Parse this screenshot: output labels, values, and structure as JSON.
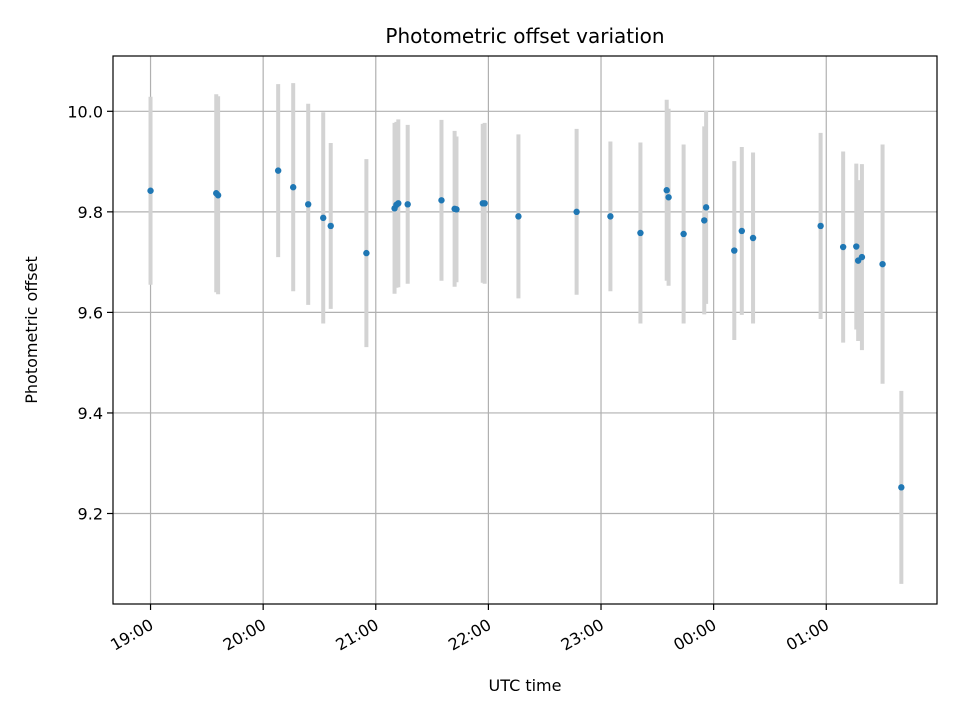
{
  "chart_data": {
    "type": "scatter",
    "title": "Photometric offset variation",
    "xlabel": "UTC time",
    "ylabel": "Photometric offset",
    "grid": true,
    "xlim": [
      "18:40",
      "01:59"
    ],
    "ylim": [
      9.02,
      10.11
    ],
    "xticks": [
      "19:00",
      "20:00",
      "21:00",
      "22:00",
      "23:00",
      "00:00",
      "01:00"
    ],
    "yticks": [
      9.2,
      9.4,
      9.6,
      9.8,
      10.0
    ],
    "colors": {
      "marker": "#1f77b4",
      "errorbar": "#d3d3d3",
      "grid": "#b0b0b0"
    },
    "points": [
      {
        "x": "19:00",
        "y": 9.842,
        "err": 0.187
      },
      {
        "x": "19:35",
        "y": 9.837,
        "err": 0.197
      },
      {
        "x": "19:36",
        "y": 9.833,
        "err": 0.197
      },
      {
        "x": "20:08",
        "y": 9.882,
        "err": 0.172
      },
      {
        "x": "20:16",
        "y": 9.849,
        "err": 0.207
      },
      {
        "x": "20:24",
        "y": 9.815,
        "err": 0.2
      },
      {
        "x": "20:32",
        "y": 9.788,
        "err": 0.21
      },
      {
        "x": "20:36",
        "y": 9.772,
        "err": 0.165
      },
      {
        "x": "20:55",
        "y": 9.718,
        "err": 0.187
      },
      {
        "x": "21:10",
        "y": 9.807,
        "err": 0.17
      },
      {
        "x": "21:11",
        "y": 9.814,
        "err": 0.165
      },
      {
        "x": "21:12",
        "y": 9.817,
        "err": 0.167
      },
      {
        "x": "21:17",
        "y": 9.815,
        "err": 0.158
      },
      {
        "x": "21:35",
        "y": 9.823,
        "err": 0.16
      },
      {
        "x": "21:42",
        "y": 9.806,
        "err": 0.155
      },
      {
        "x": "21:43",
        "y": 9.805,
        "err": 0.145
      },
      {
        "x": "21:57",
        "y": 9.817,
        "err": 0.158
      },
      {
        "x": "21:58",
        "y": 9.817,
        "err": 0.16
      },
      {
        "x": "22:16",
        "y": 9.791,
        "err": 0.163
      },
      {
        "x": "22:47",
        "y": 9.8,
        "err": 0.165
      },
      {
        "x": "23:05",
        "y": 9.791,
        "err": 0.149
      },
      {
        "x": "23:21",
        "y": 9.758,
        "err": 0.18
      },
      {
        "x": "23:35",
        "y": 9.843,
        "err": 0.18
      },
      {
        "x": "23:36",
        "y": 9.829,
        "err": 0.176
      },
      {
        "x": "23:44",
        "y": 9.756,
        "err": 0.178
      },
      {
        "x": "23:55",
        "y": 9.783,
        "err": 0.187
      },
      {
        "x": "23:56",
        "y": 9.809,
        "err": 0.192
      },
      {
        "x": "00:11",
        "y": 9.723,
        "err": 0.178
      },
      {
        "x": "00:15",
        "y": 9.762,
        "err": 0.167
      },
      {
        "x": "00:21",
        "y": 9.748,
        "err": 0.17
      },
      {
        "x": "00:57",
        "y": 9.772,
        "err": 0.185
      },
      {
        "x": "01:09",
        "y": 9.73,
        "err": 0.19
      },
      {
        "x": "01:16",
        "y": 9.731,
        "err": 0.165
      },
      {
        "x": "01:17",
        "y": 9.703,
        "err": 0.16
      },
      {
        "x": "01:19",
        "y": 9.71,
        "err": 0.185
      },
      {
        "x": "01:30",
        "y": 9.696,
        "err": 0.238
      },
      {
        "x": "01:40",
        "y": 9.252,
        "err": 0.192
      }
    ]
  }
}
